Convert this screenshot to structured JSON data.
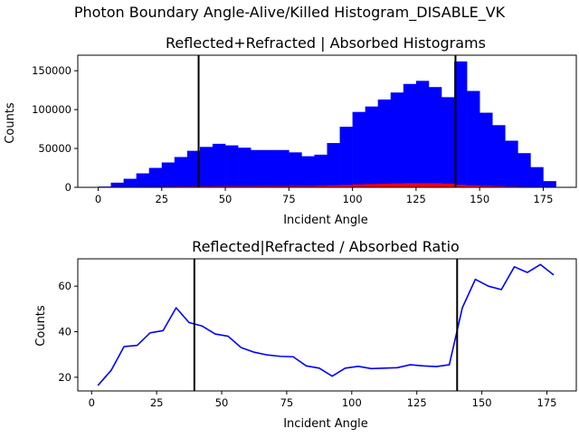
{
  "figure": {
    "suptitle": "Photon Boundary Angle-Alive/Killed Histogram_DISABLE_VK"
  },
  "chart_data": [
    {
      "type": "bar",
      "title": "Reflected+Refracted | Absorbed Histograms",
      "xlabel": "Incident Angle",
      "ylabel": "Counts",
      "xlim": [
        -8,
        188
      ],
      "ylim": [
        0,
        170000
      ],
      "xticks": [
        0,
        25,
        50,
        75,
        100,
        125,
        150,
        175
      ],
      "yticks": [
        0,
        50000,
        100000,
        150000
      ],
      "bin_width": 5,
      "vlines": [
        39.5,
        140.5
      ],
      "grid": false,
      "legend": "none",
      "series": [
        {
          "color": "#0000ff",
          "bin_starts": [
            0,
            5,
            10,
            15,
            20,
            25,
            30,
            35,
            40,
            45,
            50,
            55,
            60,
            65,
            70,
            75,
            80,
            85,
            90,
            95,
            100,
            105,
            110,
            115,
            120,
            125,
            130,
            135,
            140,
            145,
            150,
            155,
            160,
            165,
            170,
            175
          ],
          "values": [
            1000,
            6000,
            11000,
            18000,
            25000,
            32000,
            39000,
            47000,
            52000,
            56000,
            54000,
            51000,
            48000,
            48000,
            48000,
            45000,
            40000,
            42000,
            57000,
            78000,
            97000,
            104000,
            113000,
            122000,
            133000,
            137000,
            129000,
            116000,
            162000,
            124000,
            96000,
            80000,
            60000,
            44000,
            26000,
            8000
          ]
        },
        {
          "color": "#ff0000",
          "bin_starts": [
            0,
            5,
            10,
            15,
            20,
            25,
            30,
            35,
            40,
            45,
            50,
            55,
            60,
            65,
            70,
            75,
            80,
            85,
            90,
            95,
            100,
            105,
            110,
            115,
            120,
            125,
            130,
            135,
            140,
            145,
            150,
            155,
            160,
            165,
            170,
            175
          ],
          "values": [
            100,
            300,
            400,
            600,
            700,
            900,
            1000,
            1100,
            1300,
            1400,
            1500,
            1500,
            1500,
            1600,
            1600,
            1700,
            1700,
            2000,
            2400,
            3000,
            3800,
            4200,
            4600,
            5000,
            5300,
            5400,
            5300,
            4800,
            3300,
            2400,
            1800,
            1500,
            1000,
            700,
            400,
            100
          ]
        }
      ]
    },
    {
      "type": "line",
      "title": "Reflected|Refracted / Absorbed Ratio",
      "xlabel": "Incident Angle",
      "ylabel": "Counts",
      "xlim": [
        -5.3,
        186.3
      ],
      "ylim": [
        14,
        72
      ],
      "xticks": [
        0,
        25,
        50,
        75,
        100,
        125,
        150,
        175
      ],
      "yticks": [
        20,
        40,
        60
      ],
      "vlines": [
        39.5,
        140.5
      ],
      "grid": false,
      "legend": "none",
      "series": [
        {
          "color": "#0000ff",
          "x": [
            2.5,
            7.5,
            12.5,
            17.5,
            22.5,
            27.5,
            32.5,
            37.5,
            42.5,
            47.5,
            52.5,
            57.5,
            62.5,
            67.5,
            72.5,
            77.5,
            82.5,
            87.5,
            92.5,
            97.5,
            102.5,
            107.5,
            112.5,
            117.5,
            122.5,
            127.5,
            132.5,
            137.5,
            142.5,
            147.5,
            152.5,
            157.5,
            162.5,
            167.5,
            172.5,
            177.5
          ],
          "y": [
            16.5,
            23,
            33.5,
            34,
            39.5,
            40.5,
            50.5,
            44,
            42.5,
            39,
            38,
            33,
            31,
            29.8,
            29.2,
            29,
            25,
            24,
            20.5,
            24,
            24.8,
            23.8,
            24,
            24.2,
            25.5,
            25,
            24.7,
            25.5,
            50.5,
            63,
            60,
            58.5,
            68.5,
            66,
            69.5,
            65
          ]
        }
      ]
    }
  ]
}
